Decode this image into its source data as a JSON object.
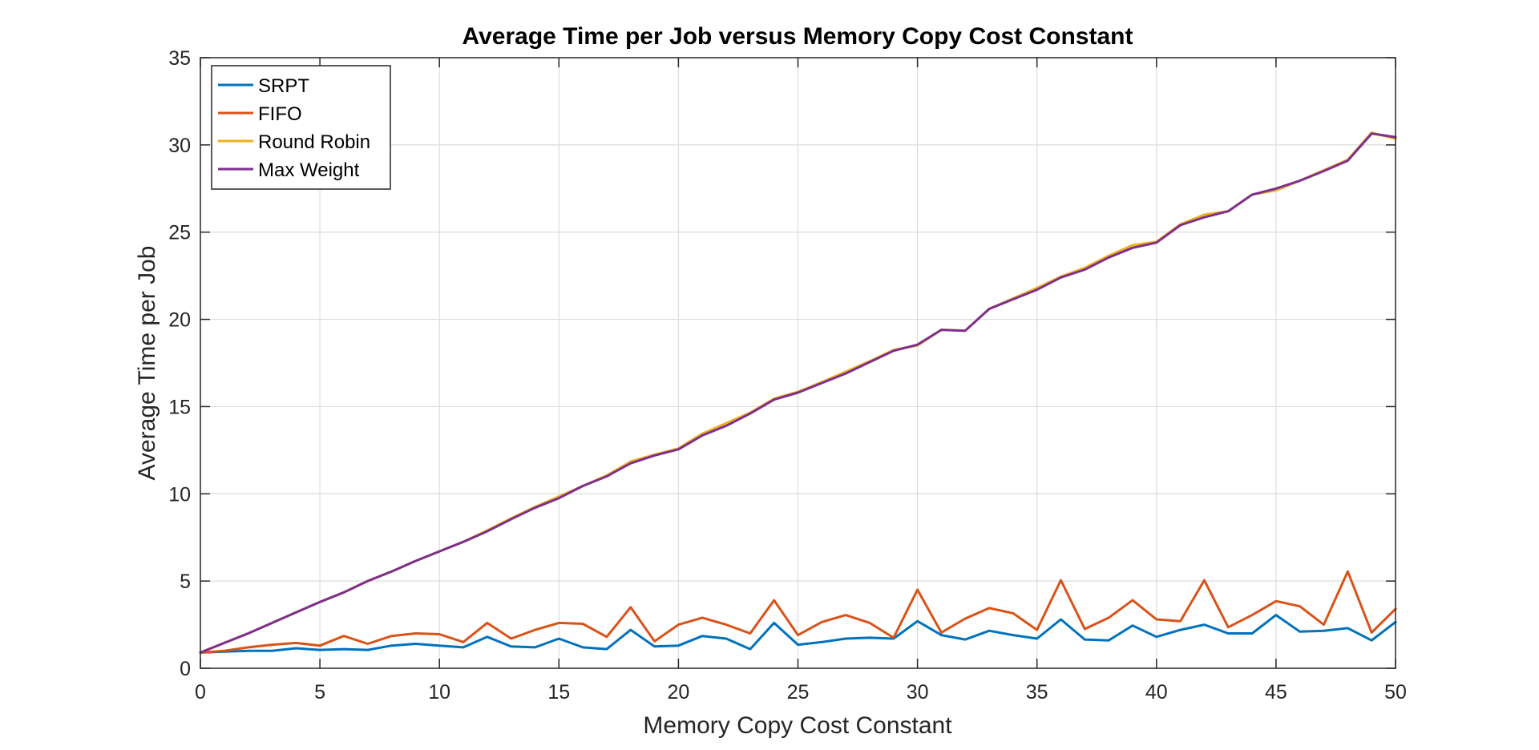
{
  "chart_data": {
    "type": "line",
    "title": "Average Time per Job versus Memory Copy Cost Constant",
    "xlabel": "Memory Copy Cost Constant",
    "ylabel": "Average Time per Job",
    "xlim": [
      0,
      50
    ],
    "ylim": [
      0,
      35
    ],
    "xticks": [
      0,
      5,
      10,
      15,
      20,
      25,
      30,
      35,
      40,
      45,
      50
    ],
    "yticks": [
      0,
      5,
      10,
      15,
      20,
      25,
      30,
      35
    ],
    "grid": true,
    "legend_position": "top-left",
    "x": [
      0,
      1,
      2,
      3,
      4,
      5,
      6,
      7,
      8,
      9,
      10,
      11,
      12,
      13,
      14,
      15,
      16,
      17,
      18,
      19,
      20,
      21,
      22,
      23,
      24,
      25,
      26,
      27,
      28,
      29,
      30,
      31,
      32,
      33,
      34,
      35,
      36,
      37,
      38,
      39,
      40,
      41,
      42,
      43,
      44,
      45,
      46,
      47,
      48,
      49,
      50
    ],
    "series": [
      {
        "name": "SRPT",
        "color": "#0072BD",
        "values": [
          0.9,
          0.95,
          1.0,
          1.0,
          1.15,
          1.05,
          1.1,
          1.05,
          1.3,
          1.4,
          1.3,
          1.2,
          1.8,
          1.25,
          1.2,
          1.7,
          1.2,
          1.1,
          2.2,
          1.25,
          1.3,
          1.85,
          1.7,
          1.1,
          2.6,
          1.35,
          1.5,
          1.7,
          1.75,
          1.7,
          2.7,
          1.9,
          1.65,
          2.15,
          1.9,
          1.7,
          2.8,
          1.65,
          1.6,
          2.45,
          1.8,
          2.2,
          2.5,
          2.0,
          2.0,
          3.05,
          2.1,
          2.15,
          2.3,
          1.6,
          2.65
        ]
      },
      {
        "name": "FIFO",
        "color": "#D95319",
        "values": [
          0.9,
          1.0,
          1.2,
          1.35,
          1.45,
          1.3,
          1.85,
          1.4,
          1.85,
          2.0,
          1.95,
          1.5,
          2.6,
          1.7,
          2.2,
          2.6,
          2.55,
          1.8,
          3.5,
          1.55,
          2.5,
          2.9,
          2.5,
          2.0,
          3.9,
          1.9,
          2.65,
          3.05,
          2.6,
          1.75,
          4.5,
          2.05,
          2.85,
          3.45,
          3.15,
          2.2,
          5.05,
          2.25,
          2.9,
          3.9,
          2.8,
          2.7,
          5.05,
          2.35,
          3.05,
          3.85,
          3.55,
          2.5,
          5.55,
          2.05,
          3.4
        ]
      },
      {
        "name": "Round Robin",
        "color": "#EDB120",
        "values": [
          0.9,
          1.45,
          2.0,
          2.6,
          3.2,
          3.8,
          4.35,
          5.0,
          5.55,
          6.15,
          6.7,
          7.25,
          7.9,
          8.6,
          9.25,
          9.85,
          10.45,
          11.05,
          11.85,
          12.25,
          12.6,
          13.45,
          14.05,
          14.65,
          15.45,
          15.85,
          16.4,
          17.0,
          17.6,
          18.25,
          18.5,
          19.4,
          19.35,
          20.6,
          21.2,
          21.8,
          22.45,
          22.95,
          23.65,
          24.25,
          24.45,
          25.45,
          26.0,
          26.2,
          27.15,
          27.4,
          27.95,
          28.55,
          29.15,
          30.7,
          30.35
        ]
      },
      {
        "name": "Max Weight",
        "color": "#7E2F8E",
        "values": [
          0.9,
          1.45,
          2.0,
          2.6,
          3.2,
          3.8,
          4.35,
          5.0,
          5.55,
          6.15,
          6.7,
          7.25,
          7.85,
          8.55,
          9.2,
          9.75,
          10.45,
          11.0,
          11.75,
          12.2,
          12.55,
          13.35,
          13.9,
          14.6,
          15.4,
          15.8,
          16.35,
          16.9,
          17.55,
          18.2,
          18.55,
          19.4,
          19.35,
          20.6,
          21.15,
          21.7,
          22.4,
          22.85,
          23.55,
          24.1,
          24.4,
          25.4,
          25.85,
          26.2,
          27.15,
          27.5,
          27.95,
          28.5,
          29.1,
          30.65,
          30.45
        ]
      }
    ]
  }
}
